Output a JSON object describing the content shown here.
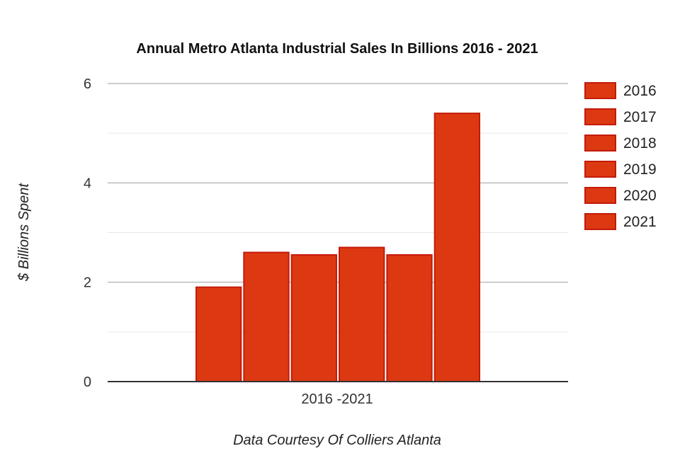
{
  "chart_data": {
    "type": "bar",
    "title": "Annual Metro Atlanta Industrial Sales In Billions 2016 - 2021",
    "xlabel": "Data Courtesy Of Colliers Atlanta",
    "ylabel": "$ Billions Spent",
    "categories": [
      "2016 -2021"
    ],
    "series": [
      {
        "name": "2016",
        "values": [
          1.9
        ]
      },
      {
        "name": "2017",
        "values": [
          2.6
        ]
      },
      {
        "name": "2018",
        "values": [
          2.55
        ]
      },
      {
        "name": "2019",
        "values": [
          2.7
        ]
      },
      {
        "name": "2020",
        "values": [
          2.55
        ]
      },
      {
        "name": "2021",
        "values": [
          5.4
        ]
      }
    ],
    "ylim": [
      0,
      6
    ],
    "yticks": [
      "0",
      "2",
      "4",
      "6"
    ],
    "grid": true,
    "legend": "right",
    "colors": {
      "bar_fill": "#dc3912",
      "bar_stroke": "#c41a0a",
      "grid": "#cccccc",
      "axis": "#333333"
    }
  }
}
